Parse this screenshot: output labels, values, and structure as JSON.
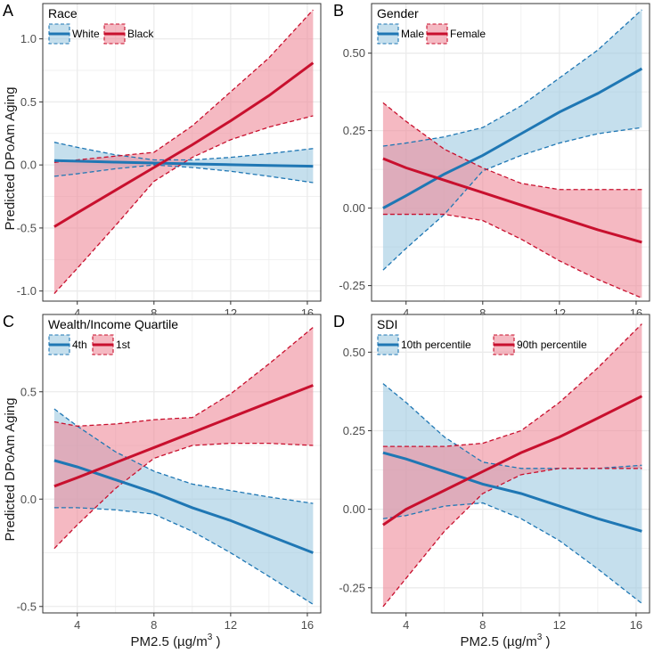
{
  "figure": {
    "x_axis_title": "PM2.5 (µg/m",
    "x_axis_sup": "3",
    "x_axis_close": " )",
    "y_axis_title": "Predicted DPoAm Aging"
  },
  "colors": {
    "blue_line": "#1f77b4",
    "blue_fill": "#9ecae1",
    "red_line": "#c8102e",
    "red_fill": "#ef8a99",
    "grid": "#ebebeb",
    "frame": "#333333"
  },
  "chart_data": [
    {
      "panel": "A",
      "type": "line",
      "legend_title": "Race",
      "xlim": [
        2.2,
        16.7
      ],
      "ylim": [
        -1.08,
        1.28
      ],
      "x_ticks": [
        4,
        8,
        12,
        16
      ],
      "y_ticks": [
        -1.0,
        -0.5,
        0.0,
        0.5,
        1.0
      ],
      "y_tick_labels": [
        "-1.0",
        "-0.5",
        "0.0",
        "0.5",
        "1.0"
      ],
      "series": [
        {
          "name": "White",
          "color": "blue",
          "x": [
            2.8,
            4,
            6,
            8,
            10,
            12,
            14,
            16.3
          ],
          "fit": [
            0.035,
            0.03,
            0.022,
            0.015,
            0.008,
            0.002,
            -0.004,
            -0.01
          ],
          "lower": [
            -0.09,
            -0.07,
            -0.03,
            0.0,
            -0.02,
            -0.05,
            -0.09,
            -0.14
          ],
          "upper": [
            0.18,
            0.14,
            0.08,
            0.04,
            0.04,
            0.06,
            0.09,
            0.13
          ]
        },
        {
          "name": "Black",
          "color": "red",
          "x": [
            2.8,
            4,
            6,
            8,
            10,
            12,
            14,
            16.3
          ],
          "fit": [
            -0.49,
            -0.38,
            -0.2,
            -0.02,
            0.16,
            0.35,
            0.55,
            0.81
          ],
          "lower": [
            -1.02,
            -0.82,
            -0.48,
            -0.13,
            0.06,
            0.2,
            0.3,
            0.39
          ],
          "upper": [
            0.02,
            0.04,
            0.07,
            0.1,
            0.31,
            0.58,
            0.85,
            1.23
          ]
        }
      ]
    },
    {
      "panel": "B",
      "type": "line",
      "legend_title": "Gender",
      "xlim": [
        2.2,
        16.7
      ],
      "ylim": [
        -0.3,
        0.66
      ],
      "x_ticks": [
        4,
        8,
        12,
        16
      ],
      "y_ticks": [
        -0.25,
        0.0,
        0.25,
        0.5
      ],
      "y_tick_labels": [
        "-0.25",
        "0.00",
        "0.25",
        "0.50"
      ],
      "series": [
        {
          "name": "Male",
          "color": "blue",
          "x": [
            2.8,
            4,
            6,
            8,
            10,
            12,
            14,
            16.3
          ],
          "fit": [
            0.0,
            0.04,
            0.11,
            0.17,
            0.24,
            0.31,
            0.37,
            0.45
          ],
          "lower": [
            -0.2,
            -0.13,
            -0.02,
            0.12,
            0.17,
            0.21,
            0.24,
            0.26
          ],
          "upper": [
            0.2,
            0.21,
            0.23,
            0.26,
            0.33,
            0.42,
            0.51,
            0.64
          ]
        },
        {
          "name": "Female",
          "color": "red",
          "x": [
            2.8,
            4,
            6,
            8,
            10,
            12,
            14,
            16.3
          ],
          "fit": [
            0.16,
            0.13,
            0.09,
            0.05,
            0.01,
            -0.03,
            -0.07,
            -0.11
          ],
          "lower": [
            -0.02,
            -0.02,
            -0.02,
            -0.04,
            -0.1,
            -0.17,
            -0.23,
            -0.29
          ],
          "upper": [
            0.34,
            0.28,
            0.19,
            0.13,
            0.08,
            0.06,
            0.06,
            0.06
          ]
        }
      ]
    },
    {
      "panel": "C",
      "type": "line",
      "legend_title": "Wealth/Income Quartile",
      "xlim": [
        2.2,
        16.7
      ],
      "ylim": [
        -0.53,
        0.86
      ],
      "x_ticks": [
        4,
        8,
        12,
        16
      ],
      "y_ticks": [
        -0.5,
        0.0,
        0.5
      ],
      "y_tick_labels": [
        "-0.5",
        "0.0",
        "0.5"
      ],
      "series": [
        {
          "name": "4th",
          "color": "blue",
          "x": [
            2.8,
            4,
            6,
            8,
            10,
            12,
            14,
            16.3
          ],
          "fit": [
            0.18,
            0.15,
            0.09,
            0.03,
            -0.04,
            -0.1,
            -0.17,
            -0.25
          ],
          "lower": [
            -0.04,
            -0.04,
            -0.05,
            -0.07,
            -0.15,
            -0.25,
            -0.36,
            -0.49
          ],
          "upper": [
            0.42,
            0.34,
            0.22,
            0.13,
            0.07,
            0.04,
            0.01,
            -0.02
          ]
        },
        {
          "name": "1st",
          "color": "red",
          "x": [
            2.8,
            4,
            6,
            8,
            10,
            12,
            14,
            16.3
          ],
          "fit": [
            0.06,
            0.1,
            0.17,
            0.24,
            0.31,
            0.38,
            0.45,
            0.53
          ],
          "lower": [
            -0.23,
            -0.12,
            0.05,
            0.19,
            0.25,
            0.26,
            0.26,
            0.25
          ],
          "upper": [
            0.36,
            0.34,
            0.35,
            0.37,
            0.38,
            0.49,
            0.63,
            0.8
          ]
        }
      ]
    },
    {
      "panel": "D",
      "type": "line",
      "legend_title": "SDI",
      "xlim": [
        2.2,
        16.7
      ],
      "ylim": [
        -0.33,
        0.62
      ],
      "x_ticks": [
        4,
        8,
        12,
        16
      ],
      "y_ticks": [
        -0.25,
        0.0,
        0.25,
        0.5
      ],
      "y_tick_labels": [
        "-0.25",
        "0.00",
        "0.25",
        "0.50"
      ],
      "series": [
        {
          "name": "10th percentile",
          "color": "blue",
          "x": [
            2.8,
            4,
            6,
            8,
            10,
            12,
            14,
            16.3
          ],
          "fit": [
            0.18,
            0.16,
            0.12,
            0.08,
            0.05,
            0.01,
            -0.03,
            -0.07
          ],
          "lower": [
            -0.03,
            -0.02,
            0.01,
            0.02,
            -0.03,
            -0.1,
            -0.19,
            -0.3
          ],
          "upper": [
            0.4,
            0.34,
            0.23,
            0.15,
            0.13,
            0.13,
            0.13,
            0.14
          ]
        },
        {
          "name": "90th percentile",
          "color": "red",
          "x": [
            2.8,
            4,
            6,
            8,
            10,
            12,
            14,
            16.3
          ],
          "fit": [
            -0.05,
            0.0,
            0.06,
            0.12,
            0.18,
            0.23,
            0.29,
            0.36
          ],
          "lower": [
            -0.31,
            -0.22,
            -0.07,
            0.05,
            0.11,
            0.13,
            0.13,
            0.13
          ],
          "upper": [
            0.2,
            0.2,
            0.2,
            0.21,
            0.25,
            0.34,
            0.45,
            0.59
          ]
        }
      ]
    }
  ]
}
